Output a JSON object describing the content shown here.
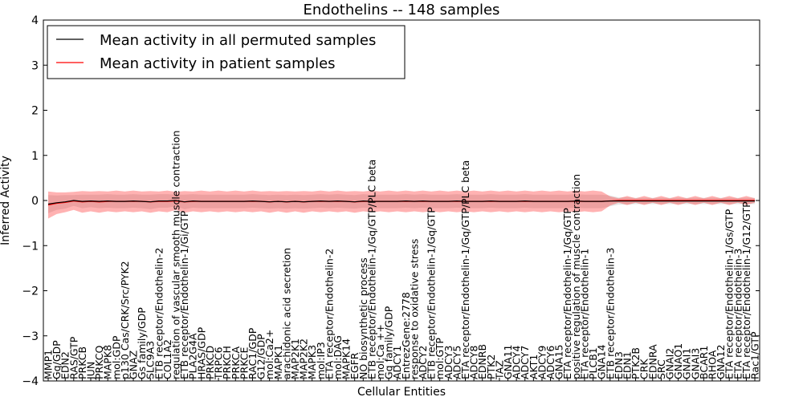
{
  "chart_data": {
    "type": "line",
    "title": "Endothelins -- 148 samples",
    "xlabel": "Cellular Entities",
    "ylabel": "Inferred Activity",
    "ylim": [
      -4,
      4
    ],
    "yticks": [
      -4,
      -3,
      -2,
      -1,
      0,
      1,
      2,
      3,
      4
    ],
    "ytick_labels": [
      "−4",
      "−3",
      "−2",
      "−1",
      "0",
      "1",
      "2",
      "3",
      "4"
    ],
    "legend": {
      "position": "top-left",
      "entries": [
        {
          "label": "Mean activity in all permuted samples",
          "color": "#000000"
        },
        {
          "label": "Mean activity in patient samples",
          "color": "#ff0000"
        }
      ]
    },
    "categories": [
      "MMP1",
      "Gq/GDP",
      "EDN2",
      "RAS/GTP",
      "PRKCB",
      "JUN",
      "PRKCQ",
      "MAPK8",
      "mol:GDP",
      "p130 Cas/CRK/Src/PYK2",
      "GNAZ",
      "Gs family/GDP",
      "SLC9A3",
      "ETB receptor/Endothelin-2",
      "COL1A2",
      "regulation of vascular smooth muscle contraction",
      "ETB receptor/Endothelin-1/Gi/GTP",
      "PLA2G4A",
      "HRAS/GDP",
      "PRKCD",
      "TRPC6",
      "PRKCH",
      "PRKCA",
      "PRKCE",
      "RAC1/GDP",
      "G12/GDP",
      "mol:Ca2+",
      "MAPK1",
      "arachidonic acid secretion",
      "MAP2K1",
      "MAP2K2",
      "MAPK3",
      "mol:IP3",
      "ETA receptor/Endothelin-2",
      "mol:DAG",
      "MAPK14",
      "EGFR",
      "NO biosynthetic process",
      "ETB receptor/Endothelin-1/Gq/GTP/PLC beta",
      "mol:Ca ++",
      "Gq family/GDP",
      "ADCY1",
      "EntrezGene:2778",
      "response to oxidative stress",
      "ADCY2",
      "ETB receptor/Endothelin-1/Gq/GTP",
      "mol:GTP",
      "ADCY3",
      "ADCY5",
      "ETA receptor/Endothelin-1/Gq/GTP/PLC beta",
      "ADCY8",
      "EDNRB",
      "PTK2",
      "TAZ",
      "GNA11",
      "ADCY4",
      "ADCY7",
      "AKT1",
      "ADCY9",
      "ADCY6",
      "GNA15",
      "ETA receptor/Endothelin-1/Gq/GTP",
      "positive regulation of muscle contraction",
      "ETA receptor/Endothelin-1",
      "PLCB1",
      "GNA14",
      "ETB receptor/Endothelin-3",
      "EDN3",
      "EDN1",
      "PTK2B",
      "CRK",
      "EDNRA",
      "SRC",
      "GNAI2",
      "GNAO1",
      "GNAI1",
      "GNAI3",
      "BCAR1",
      "RHOA",
      "GNA12",
      "ETA receptor/Endothelin-1/Gs/GTP",
      "ETA receptor/Endothelin-3",
      "ETA receptor/Endothelin-1/G12/GTP",
      "Rac1/GTP"
    ],
    "series": [
      {
        "name": "Mean activity in all permuted samples",
        "color": "#000000",
        "values": [
          -0.08,
          -0.05,
          -0.03,
          0.0,
          -0.02,
          -0.01,
          -0.02,
          -0.01,
          -0.02,
          -0.02,
          -0.01,
          -0.02,
          -0.03,
          -0.01,
          -0.01,
          0.0,
          -0.03,
          -0.01,
          -0.02,
          -0.02,
          -0.02,
          -0.02,
          -0.02,
          -0.02,
          -0.01,
          -0.02,
          -0.03,
          -0.02,
          -0.03,
          -0.02,
          -0.03,
          -0.02,
          -0.01,
          -0.02,
          -0.01,
          -0.02,
          -0.03,
          -0.01,
          -0.02,
          -0.02,
          -0.02,
          -0.02,
          -0.01,
          -0.02,
          -0.01,
          -0.02,
          -0.02,
          -0.02,
          -0.01,
          -0.02,
          -0.02,
          -0.02,
          -0.01,
          -0.02,
          -0.02,
          -0.02,
          -0.01,
          -0.02,
          -0.02,
          -0.02,
          -0.02,
          -0.02,
          -0.01,
          -0.02,
          -0.02,
          -0.02,
          -0.01,
          -0.01,
          -0.01,
          -0.01,
          -0.01,
          -0.01,
          -0.01,
          -0.01,
          -0.01,
          -0.01,
          -0.01,
          -0.01,
          -0.01,
          -0.01,
          -0.01,
          -0.01,
          -0.01,
          -0.01
        ],
        "spread": [
          0.2,
          0.16,
          0.15,
          0.12,
          0.15,
          0.14,
          0.15,
          0.15,
          0.15,
          0.15,
          0.15,
          0.15,
          0.16,
          0.15,
          0.15,
          0.13,
          0.16,
          0.15,
          0.15,
          0.15,
          0.15,
          0.15,
          0.15,
          0.15,
          0.15,
          0.15,
          0.15,
          0.15,
          0.15,
          0.15,
          0.15,
          0.15,
          0.15,
          0.15,
          0.15,
          0.15,
          0.15,
          0.15,
          0.15,
          0.15,
          0.15,
          0.15,
          0.15,
          0.15,
          0.15,
          0.15,
          0.15,
          0.15,
          0.15,
          0.15,
          0.15,
          0.15,
          0.15,
          0.15,
          0.15,
          0.15,
          0.15,
          0.15,
          0.15,
          0.15,
          0.15,
          0.15,
          0.15,
          0.15,
          0.15,
          0.15,
          0.12,
          0.08,
          0.08,
          0.07,
          0.07,
          0.07,
          0.07,
          0.07,
          0.07,
          0.07,
          0.07,
          0.07,
          0.07,
          0.07,
          0.07,
          0.07,
          0.07,
          0.07
        ]
      },
      {
        "name": "Mean activity in patient samples",
        "color": "#ff0000",
        "values": [
          -0.1,
          -0.06,
          -0.04,
          -0.01,
          -0.03,
          -0.02,
          -0.03,
          -0.02,
          -0.02,
          -0.02,
          -0.02,
          -0.02,
          -0.03,
          -0.02,
          -0.02,
          -0.01,
          -0.03,
          -0.02,
          -0.02,
          -0.02,
          -0.02,
          -0.02,
          -0.02,
          -0.02,
          -0.02,
          -0.02,
          -0.03,
          -0.02,
          -0.03,
          -0.02,
          -0.03,
          -0.02,
          -0.02,
          -0.02,
          -0.02,
          -0.02,
          -0.03,
          -0.02,
          -0.02,
          -0.02,
          -0.02,
          -0.02,
          -0.02,
          -0.02,
          -0.02,
          -0.02,
          -0.02,
          -0.02,
          -0.02,
          -0.02,
          -0.02,
          -0.02,
          -0.02,
          -0.02,
          -0.02,
          -0.02,
          -0.02,
          -0.02,
          -0.02,
          -0.02,
          -0.02,
          -0.02,
          -0.02,
          -0.02,
          -0.02,
          -0.02,
          -0.01,
          0.0,
          0.0,
          0.0,
          0.0,
          0.0,
          0.0,
          0.0,
          0.0,
          0.0,
          0.0,
          0.0,
          0.0,
          0.0,
          0.0,
          0.0,
          0.0,
          0.0
        ],
        "spread": [
          0.3,
          0.24,
          0.22,
          0.2,
          0.24,
          0.22,
          0.24,
          0.22,
          0.24,
          0.22,
          0.24,
          0.22,
          0.24,
          0.22,
          0.24,
          0.2,
          0.24,
          0.22,
          0.24,
          0.22,
          0.24,
          0.22,
          0.24,
          0.22,
          0.24,
          0.22,
          0.24,
          0.22,
          0.24,
          0.22,
          0.24,
          0.22,
          0.24,
          0.22,
          0.24,
          0.22,
          0.24,
          0.22,
          0.24,
          0.22,
          0.24,
          0.22,
          0.24,
          0.22,
          0.24,
          0.22,
          0.24,
          0.22,
          0.24,
          0.22,
          0.24,
          0.22,
          0.24,
          0.22,
          0.24,
          0.22,
          0.24,
          0.22,
          0.24,
          0.22,
          0.24,
          0.22,
          0.24,
          0.22,
          0.24,
          0.22,
          0.1,
          0.05,
          0.1,
          0.05,
          0.1,
          0.05,
          0.1,
          0.05,
          0.1,
          0.05,
          0.1,
          0.05,
          0.1,
          0.05,
          0.1,
          0.05,
          0.1,
          0.05
        ]
      }
    ]
  }
}
